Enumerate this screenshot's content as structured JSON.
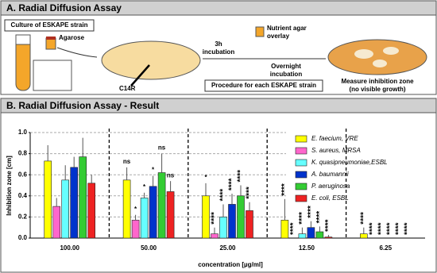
{
  "panel_a": {
    "title": "A. Radial Diffusion Assay",
    "culture": "Culture of ESKAPE strain",
    "agarose": "Agarose",
    "peptide": "C14R",
    "incubation": [
      "3h",
      "incubation"
    ],
    "overlay": [
      "Nutrient agar",
      "overlay"
    ],
    "overnight": [
      "Overnight",
      "incubation"
    ],
    "procedure": "Procedure for each ESKAPE strain",
    "measure": [
      "Measure inhibition zone",
      "(no visible growth)"
    ]
  },
  "chart_data": {
    "type": "bar",
    "title": "B. Radial Diffusion Assay - Result",
    "y_label": "Inhibition zone [cm]",
    "x_label": "concentration [µg/ml]",
    "categories": [
      "100.00",
      "50.00",
      "25.00",
      "12.50",
      "6.25"
    ],
    "ylim": [
      0,
      1
    ],
    "yticks": [
      {
        "value": 0,
        "label": "0.0"
      },
      0.2,
      0.4,
      0.6,
      0.8,
      {
        "value": 1,
        "label": "1.0"
      }
    ],
    "grid": true,
    "series": [
      {
        "name": "E. faecium, VRE",
        "color": "#ffff00",
        "values": [
          0.73,
          0.55,
          0.4,
          0.17,
          0.04
        ],
        "errors": [
          0.15,
          0.12,
          0.12,
          0.2,
          0.06
        ],
        "significance": [
          null,
          "ns",
          "*",
          "****",
          "****"
        ]
      },
      {
        "name": "S. aureus, MRSA",
        "color": "#ff66cc",
        "values": [
          0.3,
          0.17,
          0.04,
          0.0,
          0.0
        ],
        "errors": [
          0.08,
          0.05,
          0.06,
          0.0,
          0.0
        ],
        "significance": [
          null,
          "*",
          "****",
          "****",
          "****"
        ]
      },
      {
        "name": "K. quasipneumoniae,ESBL",
        "color": "#66ffff",
        "values": [
          0.55,
          0.38,
          0.2,
          0.04,
          0.0
        ],
        "errors": [
          0.14,
          0.05,
          0.12,
          0.06,
          0.0
        ],
        "significance": [
          null,
          "*",
          "****",
          "****",
          "****"
        ]
      },
      {
        "name": "A. baumannii",
        "color": "#0033cc",
        "values": [
          0.67,
          0.49,
          0.32,
          0.1,
          0.0
        ],
        "errors": [
          0.1,
          0.1,
          0.1,
          0.06,
          0.0
        ],
        "significance": [
          null,
          "*",
          "****",
          "****",
          "****"
        ]
      },
      {
        "name": "P. aeruginosa",
        "color": "#33cc33",
        "values": [
          0.77,
          0.62,
          0.4,
          0.06,
          0.0
        ],
        "errors": [
          0.18,
          0.18,
          0.1,
          0.05,
          0.0
        ],
        "significance": [
          null,
          "ns",
          "****",
          "****",
          "****"
        ]
      },
      {
        "name": "E. coli, ESBL",
        "color": "#ee2222",
        "values": [
          0.52,
          0.44,
          0.26,
          0.01,
          0.0
        ],
        "errors": [
          0.08,
          0.1,
          0.08,
          0.02,
          0.0
        ],
        "significance": [
          null,
          "ns",
          "****",
          "****",
          "****"
        ]
      }
    ]
  }
}
